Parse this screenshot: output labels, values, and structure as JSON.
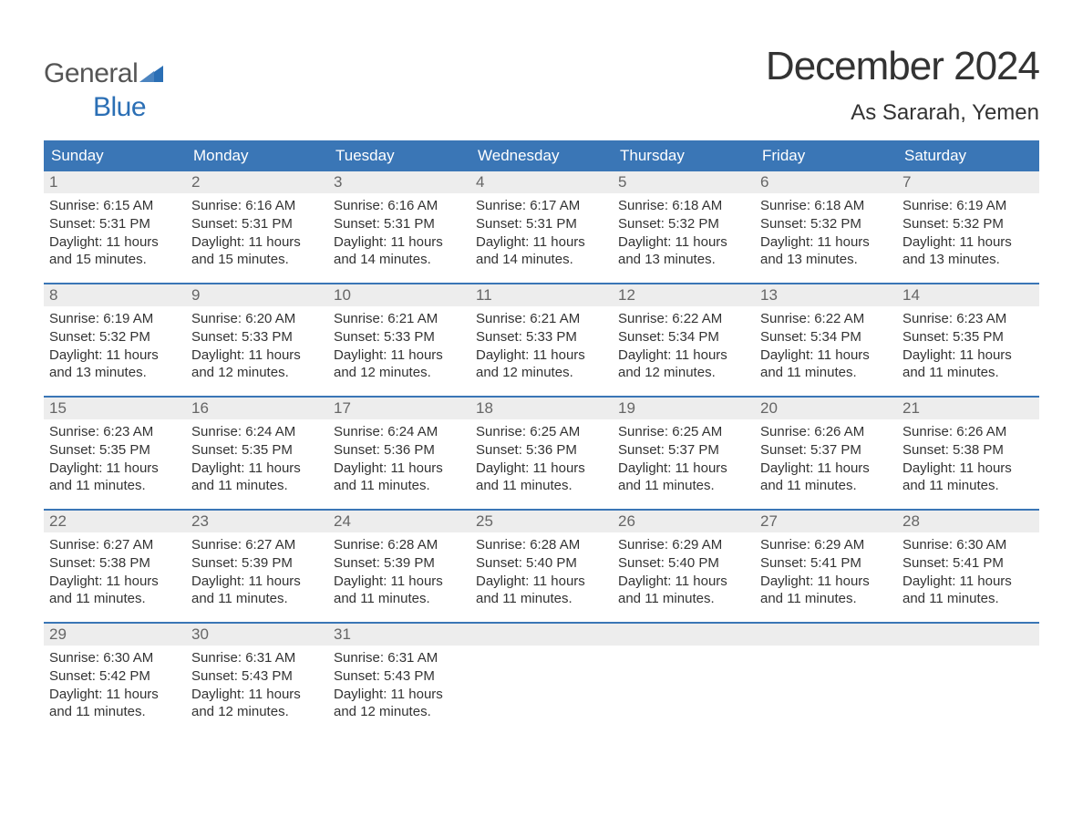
{
  "logo": {
    "text1": "General",
    "text2": "Blue"
  },
  "title": "December 2024",
  "location": "As Sararah, Yemen",
  "colors": {
    "header_bg": "#3a76b6",
    "header_text": "#ffffff",
    "daynum_bg": "#ededed",
    "daynum_text": "#666666",
    "body_text": "#333333",
    "logo_gray": "#555555",
    "logo_blue": "#2b6fb5",
    "week_border": "#3a76b6",
    "page_bg": "#ffffff"
  },
  "dow": [
    "Sunday",
    "Monday",
    "Tuesday",
    "Wednesday",
    "Thursday",
    "Friday",
    "Saturday"
  ],
  "weeks": [
    [
      {
        "n": "1",
        "sr": "6:15 AM",
        "ss": "5:31 PM",
        "dl": "11 hours and 15 minutes."
      },
      {
        "n": "2",
        "sr": "6:16 AM",
        "ss": "5:31 PM",
        "dl": "11 hours and 15 minutes."
      },
      {
        "n": "3",
        "sr": "6:16 AM",
        "ss": "5:31 PM",
        "dl": "11 hours and 14 minutes."
      },
      {
        "n": "4",
        "sr": "6:17 AM",
        "ss": "5:31 PM",
        "dl": "11 hours and 14 minutes."
      },
      {
        "n": "5",
        "sr": "6:18 AM",
        "ss": "5:32 PM",
        "dl": "11 hours and 13 minutes."
      },
      {
        "n": "6",
        "sr": "6:18 AM",
        "ss": "5:32 PM",
        "dl": "11 hours and 13 minutes."
      },
      {
        "n": "7",
        "sr": "6:19 AM",
        "ss": "5:32 PM",
        "dl": "11 hours and 13 minutes."
      }
    ],
    [
      {
        "n": "8",
        "sr": "6:19 AM",
        "ss": "5:32 PM",
        "dl": "11 hours and 13 minutes."
      },
      {
        "n": "9",
        "sr": "6:20 AM",
        "ss": "5:33 PM",
        "dl": "11 hours and 12 minutes."
      },
      {
        "n": "10",
        "sr": "6:21 AM",
        "ss": "5:33 PM",
        "dl": "11 hours and 12 minutes."
      },
      {
        "n": "11",
        "sr": "6:21 AM",
        "ss": "5:33 PM",
        "dl": "11 hours and 12 minutes."
      },
      {
        "n": "12",
        "sr": "6:22 AM",
        "ss": "5:34 PM",
        "dl": "11 hours and 12 minutes."
      },
      {
        "n": "13",
        "sr": "6:22 AM",
        "ss": "5:34 PM",
        "dl": "11 hours and 11 minutes."
      },
      {
        "n": "14",
        "sr": "6:23 AM",
        "ss": "5:35 PM",
        "dl": "11 hours and 11 minutes."
      }
    ],
    [
      {
        "n": "15",
        "sr": "6:23 AM",
        "ss": "5:35 PM",
        "dl": "11 hours and 11 minutes."
      },
      {
        "n": "16",
        "sr": "6:24 AM",
        "ss": "5:35 PM",
        "dl": "11 hours and 11 minutes."
      },
      {
        "n": "17",
        "sr": "6:24 AM",
        "ss": "5:36 PM",
        "dl": "11 hours and 11 minutes."
      },
      {
        "n": "18",
        "sr": "6:25 AM",
        "ss": "5:36 PM",
        "dl": "11 hours and 11 minutes."
      },
      {
        "n": "19",
        "sr": "6:25 AM",
        "ss": "5:37 PM",
        "dl": "11 hours and 11 minutes."
      },
      {
        "n": "20",
        "sr": "6:26 AM",
        "ss": "5:37 PM",
        "dl": "11 hours and 11 minutes."
      },
      {
        "n": "21",
        "sr": "6:26 AM",
        "ss": "5:38 PM",
        "dl": "11 hours and 11 minutes."
      }
    ],
    [
      {
        "n": "22",
        "sr": "6:27 AM",
        "ss": "5:38 PM",
        "dl": "11 hours and 11 minutes."
      },
      {
        "n": "23",
        "sr": "6:27 AM",
        "ss": "5:39 PM",
        "dl": "11 hours and 11 minutes."
      },
      {
        "n": "24",
        "sr": "6:28 AM",
        "ss": "5:39 PM",
        "dl": "11 hours and 11 minutes."
      },
      {
        "n": "25",
        "sr": "6:28 AM",
        "ss": "5:40 PM",
        "dl": "11 hours and 11 minutes."
      },
      {
        "n": "26",
        "sr": "6:29 AM",
        "ss": "5:40 PM",
        "dl": "11 hours and 11 minutes."
      },
      {
        "n": "27",
        "sr": "6:29 AM",
        "ss": "5:41 PM",
        "dl": "11 hours and 11 minutes."
      },
      {
        "n": "28",
        "sr": "6:30 AM",
        "ss": "5:41 PM",
        "dl": "11 hours and 11 minutes."
      }
    ],
    [
      {
        "n": "29",
        "sr": "6:30 AM",
        "ss": "5:42 PM",
        "dl": "11 hours and 11 minutes."
      },
      {
        "n": "30",
        "sr": "6:31 AM",
        "ss": "5:43 PM",
        "dl": "11 hours and 12 minutes."
      },
      {
        "n": "31",
        "sr": "6:31 AM",
        "ss": "5:43 PM",
        "dl": "11 hours and 12 minutes."
      },
      null,
      null,
      null,
      null
    ]
  ],
  "labels": {
    "sunrise": "Sunrise:",
    "sunset": "Sunset:",
    "daylight": "Daylight:"
  }
}
